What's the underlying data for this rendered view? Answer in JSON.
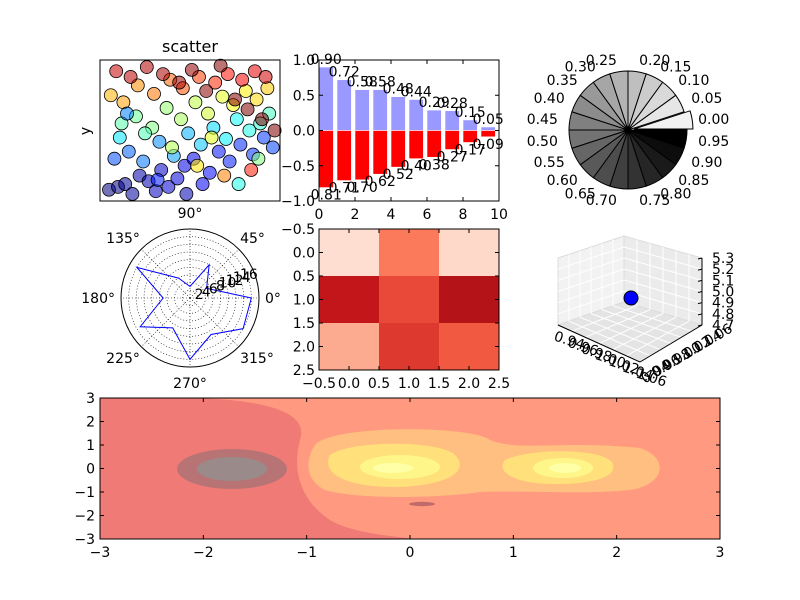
{
  "chart_data": [
    {
      "type": "scatter",
      "title": "scatter",
      "xlabel": "",
      "ylabel": "y",
      "xlim": [
        0,
        1
      ],
      "ylim": [
        0,
        1
      ],
      "x": [
        0.05,
        0.1,
        0.14,
        0.18,
        0.22,
        0.27,
        0.31,
        0.34,
        0.38,
        0.43,
        0.47,
        0.52,
        0.57,
        0.61,
        0.66,
        0.72,
        0.78,
        0.85,
        0.91,
        0.96,
        0.08,
        0.16,
        0.24,
        0.33,
        0.41,
        0.49,
        0.56,
        0.63,
        0.7,
        0.76,
        0.83,
        0.89,
        0.94,
        0.12,
        0.2,
        0.29,
        0.37,
        0.45,
        0.53,
        0.6,
        0.68,
        0.74,
        0.81,
        0.87,
        0.93,
        0.06,
        0.13,
        0.21,
        0.3,
        0.39,
        0.46,
        0.55,
        0.64,
        0.71,
        0.79,
        0.86,
        0.92,
        0.09,
        0.17,
        0.26,
        0.35,
        0.44,
        0.51,
        0.59,
        0.67,
        0.75,
        0.82,
        0.9,
        0.97,
        0.11,
        0.25,
        0.4,
        0.54,
        0.69,
        0.84,
        0.15,
        0.32,
        0.48,
        0.62,
        0.77,
        0.88
      ],
      "y": [
        0.08,
        0.1,
        0.12,
        0.05,
        0.18,
        0.14,
        0.07,
        0.22,
        0.1,
        0.16,
        0.25,
        0.3,
        0.12,
        0.2,
        0.35,
        0.28,
        0.4,
        0.33,
        0.45,
        0.38,
        0.3,
        0.35,
        0.28,
        0.42,
        0.32,
        0.48,
        0.4,
        0.52,
        0.44,
        0.58,
        0.5,
        0.55,
        0.62,
        0.55,
        0.6,
        0.52,
        0.66,
        0.58,
        0.7,
        0.62,
        0.74,
        0.68,
        0.78,
        0.72,
        0.8,
        0.75,
        0.7,
        0.82,
        0.76,
        0.86,
        0.8,
        0.88,
        0.84,
        0.9,
        0.86,
        0.92,
        0.88,
        0.92,
        0.88,
        0.95,
        0.9,
        0.84,
        0.93,
        0.78,
        0.96,
        0.72,
        0.65,
        0.58,
        0.5,
        0.45,
        0.48,
        0.38,
        0.25,
        0.18,
        0.22,
        0.62,
        0.15,
        0.05,
        0.45,
        0.12,
        0.3
      ],
      "values": [
        0.0,
        0.01,
        0.02,
        0.03,
        0.04,
        0.05,
        0.06,
        0.07,
        0.08,
        0.09,
        0.1,
        0.11,
        0.12,
        0.13,
        0.14,
        0.15,
        0.16,
        0.17,
        0.18,
        0.19,
        0.2,
        0.22,
        0.24,
        0.26,
        0.28,
        0.3,
        0.32,
        0.34,
        0.36,
        0.38,
        0.4,
        0.42,
        0.44,
        0.46,
        0.48,
        0.5,
        0.52,
        0.54,
        0.56,
        0.58,
        0.6,
        0.62,
        0.64,
        0.66,
        0.68,
        0.7,
        0.72,
        0.74,
        0.76,
        0.78,
        0.8,
        0.82,
        0.84,
        0.86,
        0.88,
        0.9,
        0.92,
        0.93,
        0.94,
        0.95,
        0.96,
        0.97,
        0.98,
        0.99,
        0.995,
        0.997,
        0.998,
        0.999,
        1.0,
        0.35,
        0.45,
        0.55,
        0.65,
        0.75,
        0.85,
        0.25,
        0.15,
        0.05,
        0.6,
        0.4,
        0.5
      ],
      "colormap": "jet",
      "grid": false
    },
    {
      "type": "bar",
      "title": "",
      "xlabel": "",
      "ylabel": "",
      "xlim": [
        0,
        10
      ],
      "ylim": [
        -1.0,
        1.0
      ],
      "xticks": [
        "0",
        "2",
        "4",
        "6",
        "8",
        "10"
      ],
      "yticks": [
        "1.0",
        "0.5",
        "0.0",
        "−0.5",
        "−1.0"
      ],
      "x": [
        0,
        1,
        2,
        3,
        4,
        5,
        6,
        7,
        8,
        9
      ],
      "series": [
        {
          "values": [
            0.9,
            0.72,
            0.58,
            0.58,
            0.48,
            0.44,
            0.29,
            0.28,
            0.15,
            0.05
          ],
          "labels": [
            "0.90",
            "0.72",
            "0.58",
            "0.58",
            "0.48",
            "0.44",
            "0.29",
            "0.28",
            "0.15",
            "0.05"
          ],
          "color": "#9999ff"
        },
        {
          "values": [
            -0.81,
            -0.71,
            -0.7,
            -0.62,
            -0.52,
            -0.4,
            -0.38,
            -0.27,
            -0.17,
            -0.09
          ],
          "labels": [
            "0.81",
            "0.71",
            "0.70",
            "0.62",
            "0.52",
            "0.40",
            "0.38",
            "0.27",
            "0.17",
            "0.09"
          ],
          "color": "#ff0000"
        }
      ],
      "grid": false
    },
    {
      "type": "pie",
      "title": "",
      "labels": [
        "0.00",
        "0.05",
        "0.10",
        "0.15",
        "0.20",
        "0.25",
        "0.30",
        "0.35",
        "0.40",
        "0.45",
        "0.50",
        "0.55",
        "0.60",
        "0.65",
        "0.70",
        "0.75",
        "0.80",
        "0.85",
        "0.90",
        "0.95"
      ],
      "values": [
        1,
        1,
        1,
        1,
        1,
        1,
        1,
        1,
        1,
        1,
        1,
        1,
        1,
        1,
        1,
        1,
        1,
        1,
        1,
        1
      ],
      "gray_levels": [
        0.0,
        0.05,
        0.1,
        0.15,
        0.2,
        0.25,
        0.3,
        0.35,
        0.4,
        0.45,
        0.5,
        0.55,
        0.6,
        0.65,
        0.7,
        0.75,
        0.8,
        0.85,
        0.9,
        0.95
      ],
      "exploded": [
        19
      ]
    },
    {
      "type": "polar",
      "title": "",
      "theta_labels": [
        "0°",
        "45°",
        "90°",
        "135°",
        "180°",
        "225°",
        "270°",
        "315°"
      ],
      "r_labels": [
        "2",
        "4",
        "6",
        "8",
        "10",
        "12",
        "14",
        "16"
      ],
      "rmax": 18,
      "theta_deg": [
        0,
        30,
        60,
        90,
        120,
        150,
        180,
        210,
        240,
        270,
        300,
        330
      ],
      "r": [
        16,
        5,
        10,
        3,
        6,
        16,
        7,
        15,
        9,
        16,
        11,
        16
      ],
      "color": "#0000ff",
      "grid": true
    },
    {
      "type": "heatmap",
      "title": "",
      "xlim": [
        -0.5,
        2.5
      ],
      "ylim": [
        2.5,
        -0.5
      ],
      "xticks": [
        "−0.5",
        "0.0",
        "0.5",
        "1.0",
        "1.5",
        "2.0",
        "2.5"
      ],
      "yticks": [
        "−0.5",
        "0.0",
        "0.5",
        "1.0",
        "1.5",
        "2.0",
        "2.5"
      ],
      "values": [
        [
          0.1,
          0.45,
          0.12
        ],
        [
          0.8,
          0.6,
          0.9
        ],
        [
          0.3,
          0.65,
          0.55
        ]
      ],
      "colormap": "Reds"
    },
    {
      "type": "scatter3d",
      "title": "",
      "x": [
        1.0
      ],
      "y": [
        1.0
      ],
      "z": [
        5.0
      ],
      "xticks": [
        "0.94",
        "0.96",
        "0.98",
        "1.00",
        "1.02",
        "1.04",
        "1.06"
      ],
      "yticks": [
        "0.94",
        "0.96",
        "0.98",
        "1.00",
        "1.02",
        "1.04",
        "1.06"
      ],
      "zticks": [
        "4.7",
        "4.8",
        "4.9",
        "5.0",
        "5.1",
        "5.2",
        "5.3"
      ],
      "color": "#0000ff"
    },
    {
      "type": "contour",
      "title": "",
      "xlim": [
        -3,
        3
      ],
      "ylim": [
        -3,
        3
      ],
      "xticks": [
        "−3",
        "−2",
        "−1",
        "0",
        "1",
        "2",
        "3"
      ],
      "yticks": [
        "3",
        "2",
        "1",
        "0",
        "−1",
        "−2",
        "−3"
      ],
      "colormap": "hot",
      "levels": 8
    }
  ]
}
